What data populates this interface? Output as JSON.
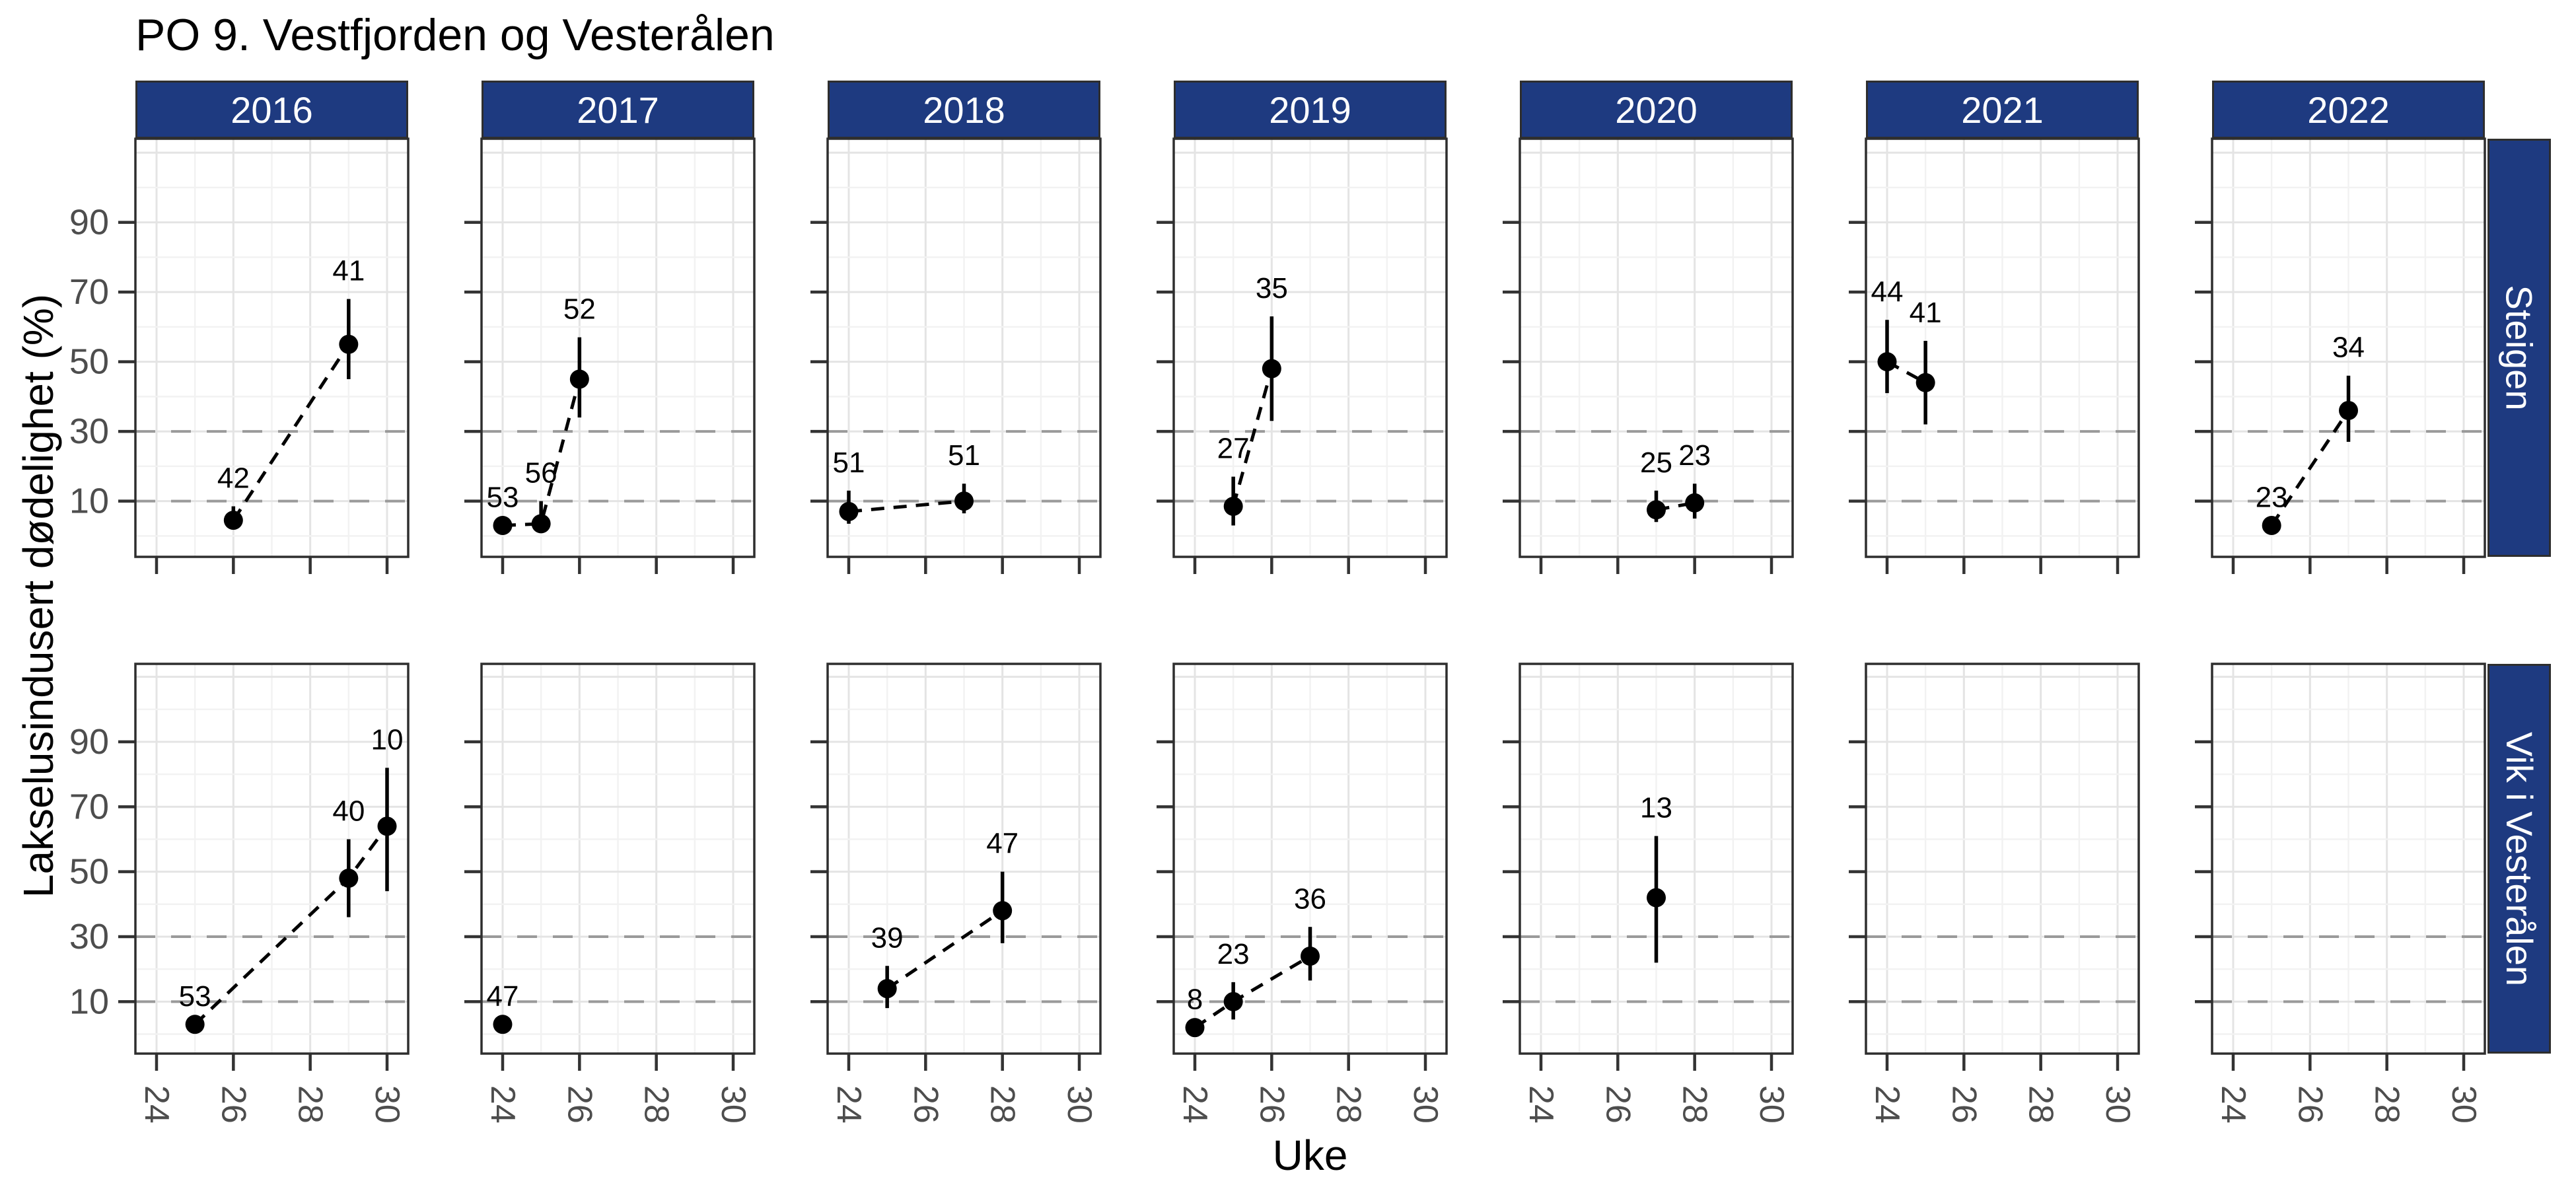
{
  "title": "PO 9. Vestfjorden og Vesterålen",
  "colors": {
    "strip_bg": "#1e3a80",
    "strip_text": "#ffffff",
    "axis_text": "#4d4d4d",
    "grid_major": "#e4e4e4",
    "grid_minor": "#f2f2f2",
    "threshold_line": "#9a9a9a",
    "data_color": "#000000",
    "panel_border": "#2e2e2e"
  },
  "chart_data": {
    "type": "scatter",
    "title": "PO 9. Vestfjorden og Vesterålen",
    "xlabel": "Uke",
    "ylabel": "Lakselusindusert dødelighet (%)",
    "facet_columns": [
      "2016",
      "2017",
      "2018",
      "2019",
      "2020",
      "2021",
      "2022"
    ],
    "facet_rows": [
      "Steigen",
      "Vik i Vesterålen"
    ],
    "x_major_ticks": [
      24,
      26,
      28,
      30
    ],
    "x_minor_ticks": [
      25,
      27,
      29
    ],
    "y_major_ticks": [
      90,
      70,
      50,
      30,
      10
    ],
    "y_minor_gridlines": [
      0,
      20,
      40,
      60,
      80,
      100
    ],
    "y_extra_major_gridlines": [
      110
    ],
    "threshold_lines": [
      10,
      30
    ],
    "xlim": [
      23.45,
      30.55
    ],
    "ylim": [
      -6,
      114
    ],
    "grid": true,
    "legend": "none",
    "point_annotation_meaning": "number label printed above each point",
    "panels": [
      {
        "row": "Steigen",
        "col": "2016",
        "points": [
          {
            "week": 26,
            "value": 4.5,
            "lo": 2.5,
            "hi": 8.5,
            "label": "42"
          },
          {
            "week": 29,
            "value": 55,
            "lo": 45,
            "hi": 68,
            "label": "41"
          }
        ]
      },
      {
        "row": "Steigen",
        "col": "2017",
        "points": [
          {
            "week": 24,
            "value": 3,
            "lo": null,
            "hi": null,
            "label": "53"
          },
          {
            "week": 25,
            "value": 3.5,
            "lo": 1.5,
            "hi": 10,
            "label": "56"
          },
          {
            "week": 26,
            "value": 45,
            "lo": 34,
            "hi": 57,
            "label": "52"
          }
        ]
      },
      {
        "row": "Steigen",
        "col": "2018",
        "points": [
          {
            "week": 24,
            "value": 7,
            "lo": 3.5,
            "hi": 13,
            "label": "51"
          },
          {
            "week": 27,
            "value": 10,
            "lo": 6.5,
            "hi": 15,
            "label": "51"
          }
        ]
      },
      {
        "row": "Steigen",
        "col": "2019",
        "points": [
          {
            "week": 25,
            "value": 8.5,
            "lo": 3,
            "hi": 17,
            "label": "27"
          },
          {
            "week": 26,
            "value": 48,
            "lo": 33,
            "hi": 63,
            "label": "35"
          }
        ]
      },
      {
        "row": "Steigen",
        "col": "2020",
        "points": [
          {
            "week": 27,
            "value": 7.5,
            "lo": 4,
            "hi": 13,
            "label": "25"
          },
          {
            "week": 28,
            "value": 9.5,
            "lo": 5,
            "hi": 15,
            "label": "23"
          }
        ]
      },
      {
        "row": "Steigen",
        "col": "2021",
        "points": [
          {
            "week": 24,
            "value": 50,
            "lo": 41,
            "hi": 62,
            "label": "44"
          },
          {
            "week": 25,
            "value": 44,
            "lo": 32,
            "hi": 56,
            "label": "41"
          }
        ]
      },
      {
        "row": "Steigen",
        "col": "2022",
        "points": [
          {
            "week": 25,
            "value": 3,
            "lo": null,
            "hi": null,
            "label": "23"
          },
          {
            "week": 27,
            "value": 36,
            "lo": 27,
            "hi": 46,
            "label": "34"
          }
        ]
      },
      {
        "row": "Vik i Vesterålen",
        "col": "2016",
        "points": [
          {
            "week": 25,
            "value": 3,
            "lo": null,
            "hi": null,
            "label": "53"
          },
          {
            "week": 29,
            "value": 48,
            "lo": 36,
            "hi": 60,
            "label": "40"
          },
          {
            "week": 30,
            "value": 64,
            "lo": 44,
            "hi": 82,
            "label": "10"
          }
        ]
      },
      {
        "row": "Vik i Vesterålen",
        "col": "2017",
        "points": [
          {
            "week": 24,
            "value": 3,
            "lo": null,
            "hi": null,
            "label": "47"
          }
        ]
      },
      {
        "row": "Vik i Vesterålen",
        "col": "2018",
        "points": [
          {
            "week": 25,
            "value": 14,
            "lo": 8,
            "hi": 21,
            "label": "39"
          },
          {
            "week": 28,
            "value": 38,
            "lo": 28,
            "hi": 50,
            "label": "47"
          }
        ]
      },
      {
        "row": "Vik i Vesterålen",
        "col": "2019",
        "points": [
          {
            "week": 24,
            "value": 2,
            "lo": null,
            "hi": null,
            "label": "8"
          },
          {
            "week": 25,
            "value": 10,
            "lo": 4.5,
            "hi": 16,
            "label": "23"
          },
          {
            "week": 27,
            "value": 24,
            "lo": 16.5,
            "hi": 33,
            "label": "36"
          }
        ]
      },
      {
        "row": "Vik i Vesterålen",
        "col": "2020",
        "points": [
          {
            "week": 27,
            "value": 42,
            "lo": 22,
            "hi": 61,
            "label": "13"
          }
        ]
      },
      {
        "row": "Vik i Vesterålen",
        "col": "2021",
        "points": []
      },
      {
        "row": "Vik i Vesterålen",
        "col": "2022",
        "points": []
      }
    ]
  }
}
